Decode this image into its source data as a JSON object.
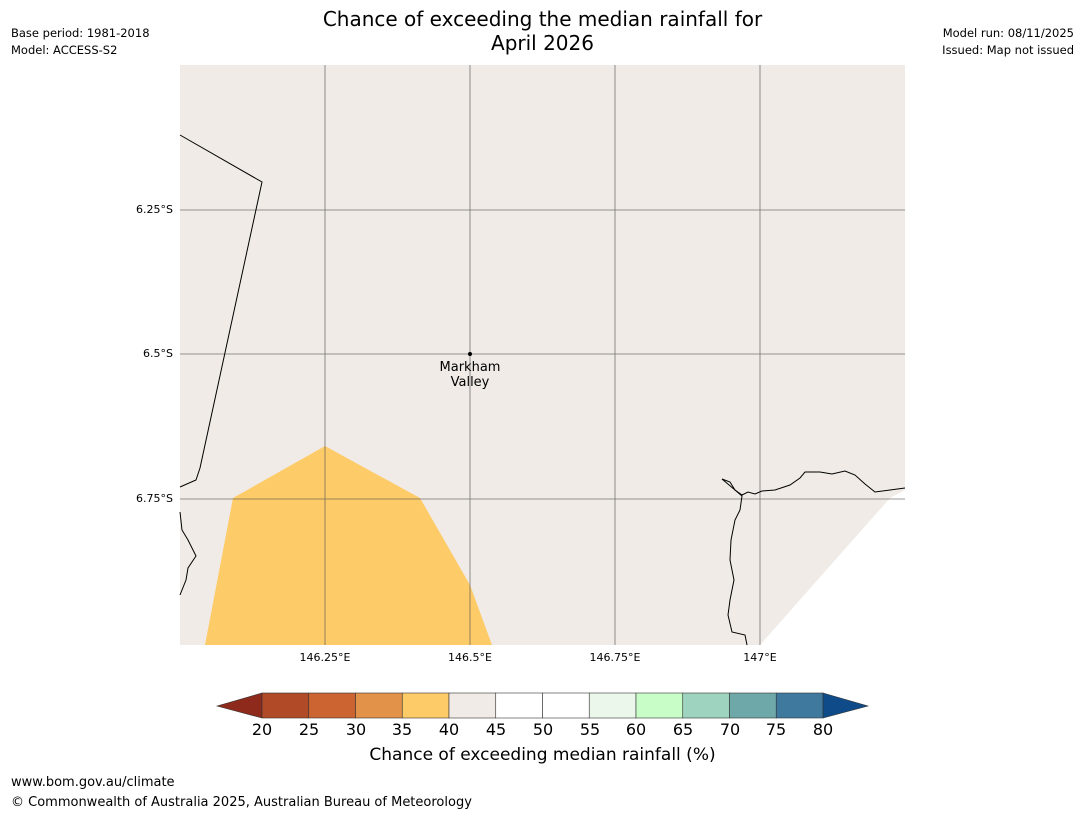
{
  "header": {
    "title_line1": "Chance of exceeding the median rainfall for",
    "title_line2": "April 2026",
    "base_period": "Base period: 1981-2018",
    "model": "Model: ACCESS-S2",
    "model_run": "Model run: 08/11/2025",
    "issued": "Issued: Map not issued"
  },
  "map": {
    "lat_labels": [
      "6.25°S",
      "6.5°S",
      "6.75°S"
    ],
    "lon_labels": [
      "146.25°E",
      "146.5°E",
      "146.75°E",
      "147°E"
    ],
    "place": {
      "name_line1": "Markham",
      "name_line2": "Valley"
    },
    "colors": {
      "land": "#f0ebe6",
      "band_35_40": "#fecb69",
      "grid": "#555555",
      "coast": "#000000"
    }
  },
  "colorbar": {
    "ticks": [
      "20",
      "25",
      "30",
      "35",
      "40",
      "45",
      "50",
      "55",
      "60",
      "65",
      "70",
      "75",
      "80"
    ],
    "under_color": "#8e2a1b",
    "over_color": "#0f4b88",
    "colors": [
      "#b14a26",
      "#cc6431",
      "#e3924a",
      "#fecb69",
      "#f0ebe6",
      "#ffffff",
      "#ffffff",
      "#ecf7ec",
      "#c8fdc8",
      "#9dd3bf",
      "#6ea8a8",
      "#3f7a9e"
    ],
    "label": "Chance of exceeding median rainfall (%)"
  },
  "footer": {
    "url": "www.bom.gov.au/climate",
    "copyright": "© Commonwealth of Australia 2025, Australian Bureau of Meteorology"
  }
}
